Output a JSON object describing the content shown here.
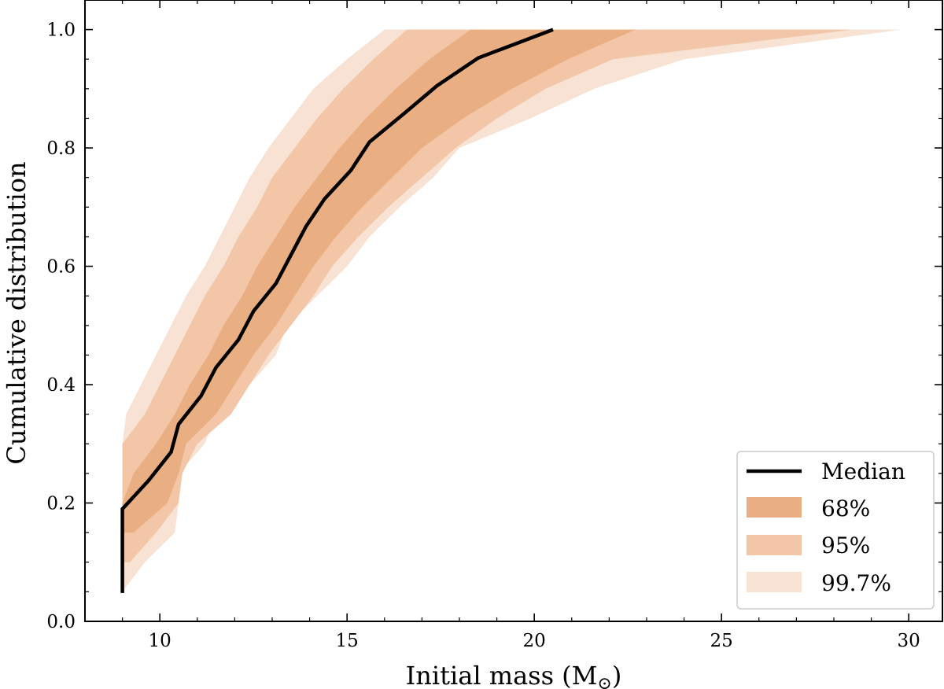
{
  "chart_data": {
    "type": "area",
    "title": "",
    "xlabel": "Initial mass (M",
    "xlabel_sub": "⊙",
    "xlabel_close": ")",
    "ylabel": "Cumulative distribution",
    "xlim": [
      8,
      30.9
    ],
    "ylim": [
      0,
      1.05
    ],
    "xticks": [
      10,
      15,
      20,
      25,
      30
    ],
    "yticks": [
      0.0,
      0.2,
      0.4,
      0.6,
      0.8,
      1.0
    ],
    "xtick_labels": [
      "10",
      "15",
      "20",
      "25",
      "30"
    ],
    "ytick_labels": [
      "0.0",
      "0.2",
      "0.4",
      "0.6",
      "0.8",
      "1.0"
    ],
    "legend_position": "lower-right",
    "median": {
      "name": "Median",
      "color": "#000000",
      "x": [
        9.0,
        9.0,
        9.7,
        10.3,
        10.5,
        11.1,
        11.5,
        12.1,
        12.5,
        13.1,
        13.5,
        13.9,
        14.4,
        15.1,
        15.6,
        16.5,
        17.4,
        18.5,
        20.5
      ],
      "y": [
        0.048,
        0.19,
        0.238,
        0.286,
        0.333,
        0.381,
        0.429,
        0.476,
        0.524,
        0.571,
        0.619,
        0.667,
        0.714,
        0.762,
        0.81,
        0.857,
        0.905,
        0.952,
        1.0
      ]
    },
    "bands": [
      {
        "name": "99.7%",
        "color": "#f8e2d3",
        "y": [
          0.05,
          0.1,
          0.15,
          0.2,
          0.25,
          0.3,
          0.35,
          0.4,
          0.45,
          0.5,
          0.55,
          0.6,
          0.65,
          0.7,
          0.75,
          0.8,
          0.85,
          0.9,
          0.95,
          1.0
        ],
        "x_low": [
          9.0,
          9.0,
          9.0,
          9.0,
          9.0,
          9.0,
          9.1,
          9.5,
          9.9,
          10.3,
          10.7,
          11.2,
          11.6,
          12.0,
          12.4,
          12.9,
          13.5,
          14.1,
          15.0,
          16.0
        ],
        "x_high": [
          9.0,
          9.6,
          10.4,
          10.5,
          10.5,
          11.2,
          11.5,
          12.4,
          13.1,
          13.4,
          14.2,
          15.0,
          15.6,
          16.4,
          17.3,
          18.0,
          19.9,
          21.6,
          24.0,
          29.8
        ]
      },
      {
        "name": "95%",
        "color": "#f2c6a6",
        "y": [
          0.1,
          0.15,
          0.2,
          0.25,
          0.3,
          0.35,
          0.4,
          0.45,
          0.5,
          0.55,
          0.6,
          0.65,
          0.7,
          0.75,
          0.8,
          0.85,
          0.9,
          0.95,
          1.0
        ],
        "x_low": [
          9.0,
          9.0,
          9.0,
          9.0,
          9.0,
          9.6,
          10.0,
          10.4,
          10.8,
          11.2,
          11.7,
          12.1,
          12.6,
          13.0,
          13.6,
          14.2,
          14.9,
          15.7,
          16.6
        ],
        "x_high": [
          9.2,
          9.9,
          10.5,
          10.6,
          11.0,
          11.9,
          12.4,
          12.9,
          13.5,
          14.1,
          14.6,
          15.3,
          16.1,
          17.0,
          17.9,
          19.0,
          20.3,
          22.1,
          28.5
        ]
      },
      {
        "name": "68%",
        "color": "#e9ae82",
        "y": [
          0.15,
          0.2,
          0.25,
          0.3,
          0.35,
          0.4,
          0.45,
          0.5,
          0.55,
          0.6,
          0.65,
          0.7,
          0.75,
          0.8,
          0.85,
          0.9,
          0.95,
          1.0
        ],
        "x_low": [
          9.0,
          9.0,
          9.3,
          9.9,
          10.4,
          10.8,
          11.3,
          11.7,
          12.2,
          12.6,
          13.1,
          13.6,
          14.2,
          14.8,
          15.5,
          16.3,
          17.2,
          18.3
        ],
        "x_high": [
          9.3,
          10.2,
          10.5,
          10.7,
          11.5,
          12.0,
          12.5,
          13.1,
          13.6,
          14.1,
          14.7,
          15.4,
          16.2,
          17.0,
          18.1,
          19.4,
          20.9,
          22.7
        ]
      }
    ],
    "legend": [
      {
        "label": "Median",
        "kind": "line",
        "color": "#000000"
      },
      {
        "label": "68%",
        "kind": "patch",
        "color": "#e9ae82"
      },
      {
        "label": "95%",
        "kind": "patch",
        "color": "#f2c6a6"
      },
      {
        "label": "99.7%",
        "kind": "patch",
        "color": "#f8e2d3"
      }
    ]
  }
}
